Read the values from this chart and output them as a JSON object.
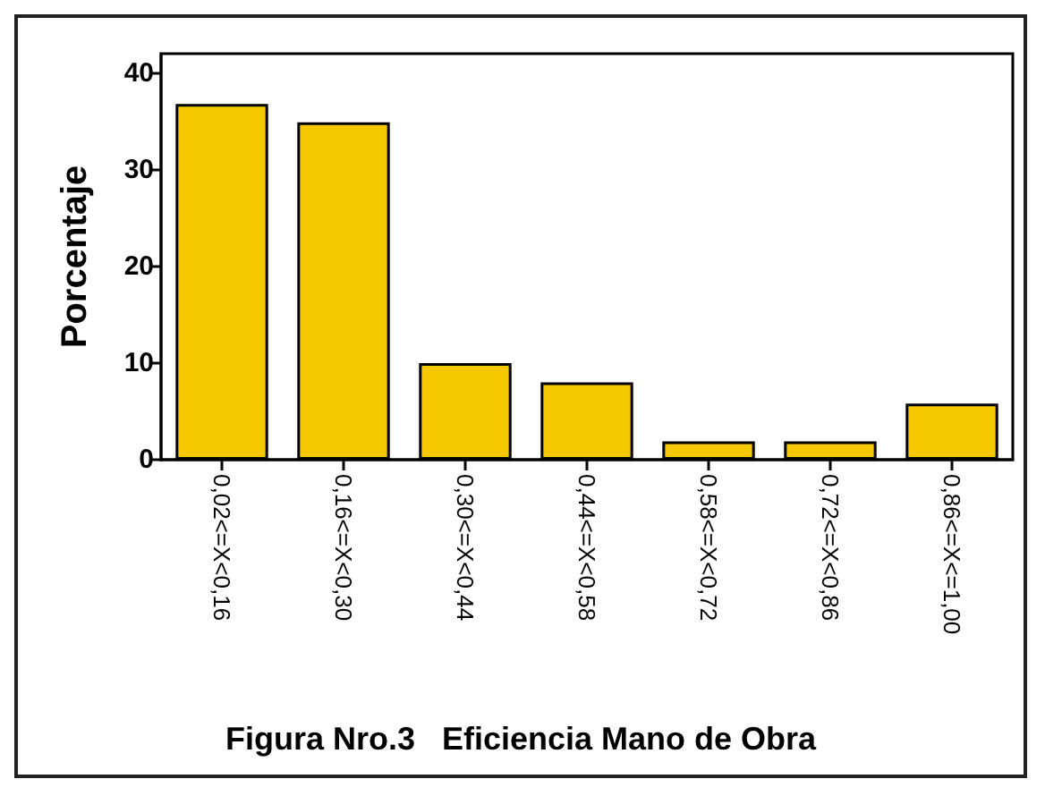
{
  "chart_data": {
    "type": "bar",
    "title": "Figura Nro.3   Eficiencia Mano de Obra",
    "ylabel": "Porcentaje",
    "categories": [
      "0,02<=X<0,16",
      "0,16<=X<0,30",
      "0,30<=X<0,44",
      "0,44<=X<0,58",
      "0,58<=X<0,72",
      "0,72<=X<0,86",
      "0,86<=X<=1,00"
    ],
    "values": [
      36.8,
      34.9,
      10,
      8,
      1.9,
      1.9,
      5.8
    ],
    "color": "#f5c800",
    "ylim": [
      0,
      42
    ],
    "yticks": [
      0,
      10,
      20,
      30,
      40
    ],
    "grid": false
  }
}
